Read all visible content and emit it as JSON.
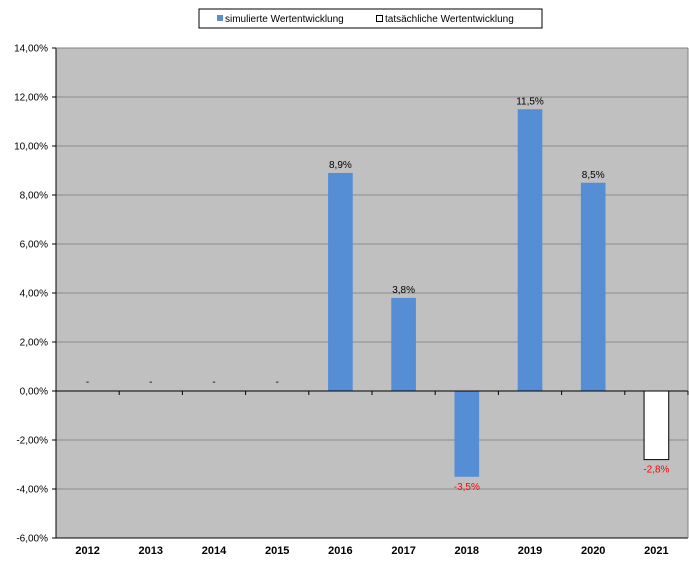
{
  "chart_data": {
    "type": "bar",
    "categories": [
      "2012",
      "2013",
      "2014",
      "2015",
      "2016",
      "2017",
      "2018",
      "2019",
      "2020",
      "2021"
    ],
    "series": [
      {
        "name": "simulierte Wertentwicklung",
        "color": "#558ED5",
        "values": [
          null,
          null,
          null,
          null,
          8.9,
          3.8,
          -3.5,
          11.5,
          8.5,
          null
        ],
        "labels": [
          "-",
          "-",
          "-",
          "-",
          "8,9%",
          "3,8%",
          "-3,5%",
          "11,5%",
          "8,5%",
          ""
        ]
      },
      {
        "name": "tatsächliche Wertentwicklung",
        "color": "#FFFFFF",
        "values": [
          null,
          null,
          null,
          null,
          null,
          null,
          null,
          null,
          null,
          -2.8
        ],
        "labels": [
          "",
          "",
          "",
          "",
          "",
          "",
          "",
          "",
          "",
          "-2,8%"
        ]
      }
    ],
    "ylim": [
      -6,
      14
    ],
    "ytick_step": 2,
    "ytick_labels": [
      "-6,00%",
      "-4,00%",
      "-2,00%",
      "0,00%",
      "2,00%",
      "4,00%",
      "6,00%",
      "8,00%",
      "10,00%",
      "12,00%",
      "14,00%"
    ],
    "grid": true,
    "legend_position": "top-center",
    "plot_background": "#C0C0C0",
    "negative_label_color": "#FF0000"
  }
}
